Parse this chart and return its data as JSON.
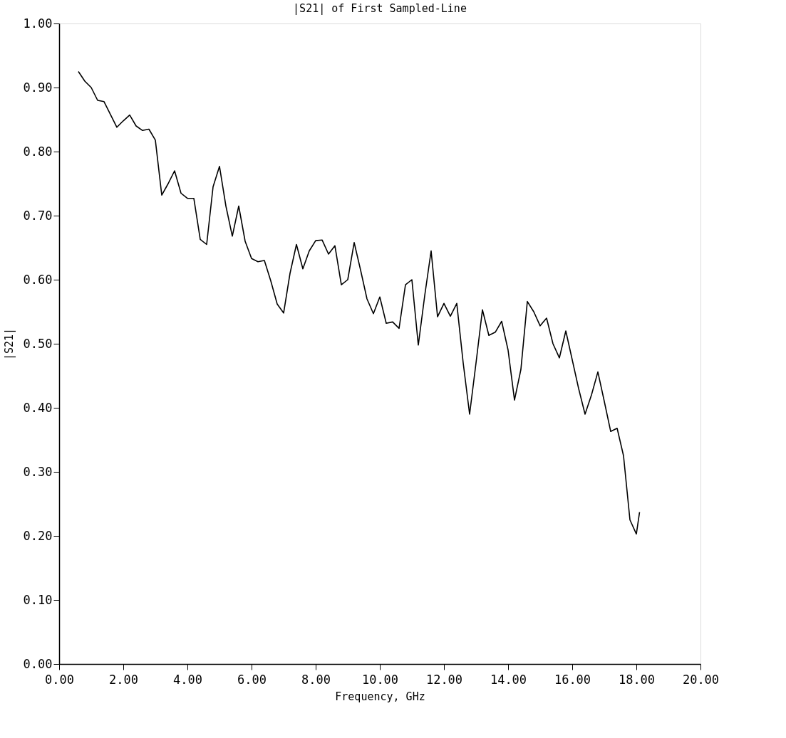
{
  "chart_data": {
    "type": "line",
    "title": "|S21| of First Sampled-Line",
    "xlabel": "Frequency, GHz",
    "ylabel": "|S21|",
    "x": [
      0.6,
      0.8,
      1.0,
      1.2,
      1.4,
      1.6,
      1.8,
      2.0,
      2.2,
      2.4,
      2.6,
      2.8,
      3.0,
      3.2,
      3.4,
      3.6,
      3.8,
      4.0,
      4.2,
      4.4,
      4.6,
      4.8,
      5.0,
      5.2,
      5.4,
      5.6,
      5.8,
      6.0,
      6.2,
      6.4,
      6.6,
      6.8,
      7.0,
      7.2,
      7.4,
      7.6,
      7.8,
      8.0,
      8.2,
      8.4,
      8.6,
      8.8,
      9.0,
      9.2,
      9.4,
      9.6,
      9.8,
      10.0,
      10.2,
      10.4,
      10.6,
      10.8,
      11.0,
      11.2,
      11.4,
      11.6,
      11.8,
      12.0,
      12.2,
      12.4,
      12.6,
      12.8,
      13.0,
      13.2,
      13.4,
      13.6,
      13.8,
      14.0,
      14.2,
      14.4,
      14.6,
      14.8,
      15.0,
      15.2,
      15.4,
      15.6,
      15.8,
      16.0,
      16.2,
      16.4,
      16.6,
      16.8,
      17.0,
      17.2,
      17.4,
      17.6,
      17.8,
      18.0,
      18.1
    ],
    "series": [
      {
        "color": "#000000",
        "values": [
          0.925,
          0.91,
          0.9,
          0.88,
          0.878,
          0.858,
          0.838,
          0.848,
          0.857,
          0.84,
          0.833,
          0.835,
          0.818,
          0.732,
          0.75,
          0.77,
          0.735,
          0.727,
          0.727,
          0.663,
          0.655,
          0.745,
          0.777,
          0.715,
          0.668,
          0.715,
          0.66,
          0.633,
          0.628,
          0.63,
          0.598,
          0.562,
          0.548,
          0.61,
          0.655,
          0.617,
          0.645,
          0.661,
          0.662,
          0.64,
          0.653,
          0.592,
          0.6,
          0.658,
          0.615,
          0.57,
          0.547,
          0.573,
          0.532,
          0.534,
          0.524,
          0.592,
          0.6,
          0.498,
          0.575,
          0.645,
          0.542,
          0.563,
          0.543,
          0.563,
          0.47,
          0.39,
          0.47,
          0.553,
          0.513,
          0.518,
          0.535,
          0.49,
          0.412,
          0.46,
          0.566,
          0.55,
          0.528,
          0.54,
          0.5,
          0.478,
          0.52,
          0.475,
          0.43,
          0.39,
          0.42,
          0.456,
          0.41,
          0.363,
          0.368,
          0.325,
          0.225,
          0.203,
          0.237
        ]
      }
    ],
    "xlim": [
      0,
      20
    ],
    "ylim": [
      0,
      1
    ],
    "xticks": [
      {
        "value": 0,
        "label": "0.00"
      },
      {
        "value": 2,
        "label": "2.00"
      },
      {
        "value": 4,
        "label": "4.00"
      },
      {
        "value": 6,
        "label": "6.00"
      },
      {
        "value": 8,
        "label": "8.00"
      },
      {
        "value": 10,
        "label": "10.00"
      },
      {
        "value": 12,
        "label": "12.00"
      },
      {
        "value": 14,
        "label": "14.00"
      },
      {
        "value": 16,
        "label": "16.00"
      },
      {
        "value": 18,
        "label": "18.00"
      },
      {
        "value": 20,
        "label": "20.00"
      }
    ],
    "yticks": [
      {
        "value": 0,
        "label": "0.00"
      },
      {
        "value": 0.1,
        "label": "0.10"
      },
      {
        "value": 0.2,
        "label": "0.20"
      },
      {
        "value": 0.3,
        "label": "0.30"
      },
      {
        "value": 0.4,
        "label": "0.40"
      },
      {
        "value": 0.5,
        "label": "0.50"
      },
      {
        "value": 0.6,
        "label": "0.60"
      },
      {
        "value": 0.7,
        "label": "0.70"
      },
      {
        "value": 0.8,
        "label": "0.80"
      },
      {
        "value": 0.9,
        "label": "0.90"
      },
      {
        "value": 1.0,
        "label": "1.00"
      }
    ],
    "grid": false,
    "marker": "none",
    "line_style": "solid"
  }
}
